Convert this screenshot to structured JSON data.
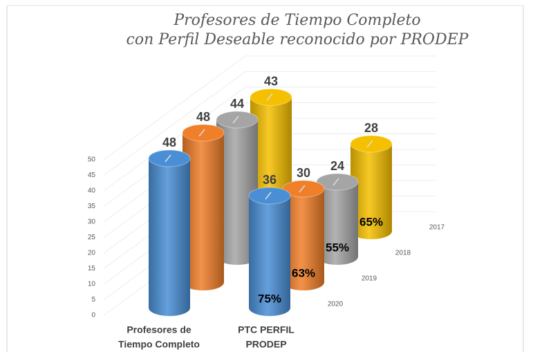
{
  "chart_data": {
    "type": "bar3d",
    "title": [
      "Profesores de Tiempo Completo",
      "con Perfil Deseable reconocido por PRODEP"
    ],
    "categories": [
      [
        "Profesores de",
        "Tiempo Completo"
      ],
      [
        "PTC PERFIL",
        "PRODEP"
      ]
    ],
    "series": [
      {
        "name": "2020",
        "color": "#4a8fd6",
        "values": [
          48,
          36
        ],
        "share": "75%"
      },
      {
        "name": "2019",
        "color": "#f07f2a",
        "values": [
          48,
          30
        ],
        "share": "63%"
      },
      {
        "name": "2018",
        "color": "#a5a5a5",
        "values": [
          44,
          24
        ],
        "share": "55%"
      },
      {
        "name": "2017",
        "color": "#f5c000",
        "values": [
          43,
          28
        ],
        "share": "65%"
      }
    ],
    "ylim": [
      0,
      50
    ],
    "yticks": [
      0,
      5,
      10,
      15,
      20,
      25,
      30,
      35,
      40,
      45,
      50
    ],
    "grid": true
  }
}
